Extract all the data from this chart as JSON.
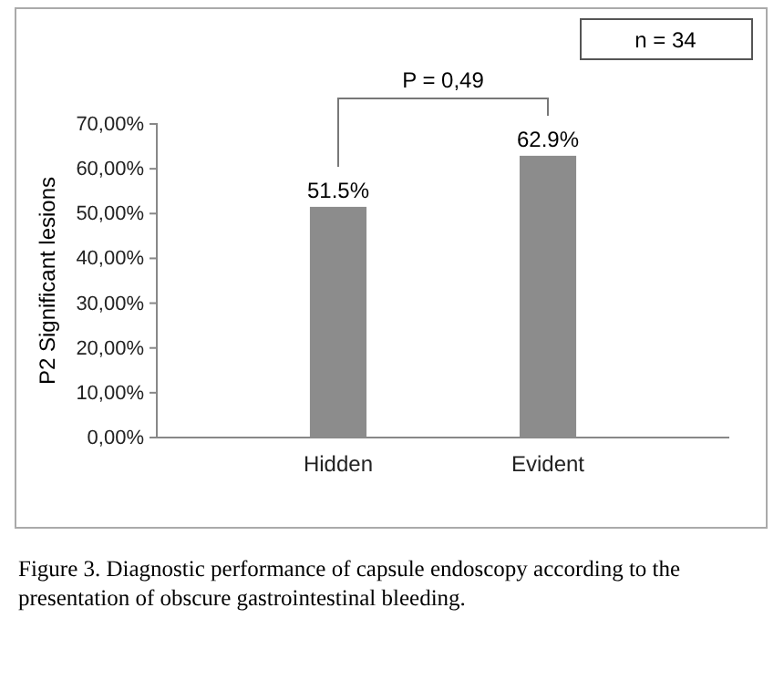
{
  "chart_data": {
    "type": "bar",
    "ylabel": "P2 Significant lesions",
    "categories": [
      "Hidden",
      "Evident"
    ],
    "values": [
      51.5,
      62.9
    ],
    "value_labels": [
      "51.5%",
      "62.9%"
    ],
    "color": "#8c8c8c",
    "ylim": [
      0,
      70
    ],
    "yticks": [
      {
        "value": 0,
        "label": "0,00%"
      },
      {
        "value": 10,
        "label": "10,00%"
      },
      {
        "value": 20,
        "label": "20,00%"
      },
      {
        "value": 30,
        "label": "30,00%"
      },
      {
        "value": 40,
        "label": "40,00%"
      },
      {
        "value": 50,
        "label": "50,00%"
      },
      {
        "value": 60,
        "label": "60,00%"
      },
      {
        "value": 70,
        "label": "70,00%"
      }
    ],
    "annotations": [
      "n = 34",
      "P = 0,49",
      "Figure 3. Diagnostic performance of capsule endoscopy according to the presentation of obscure gastrointestinal bleeding."
    ]
  }
}
